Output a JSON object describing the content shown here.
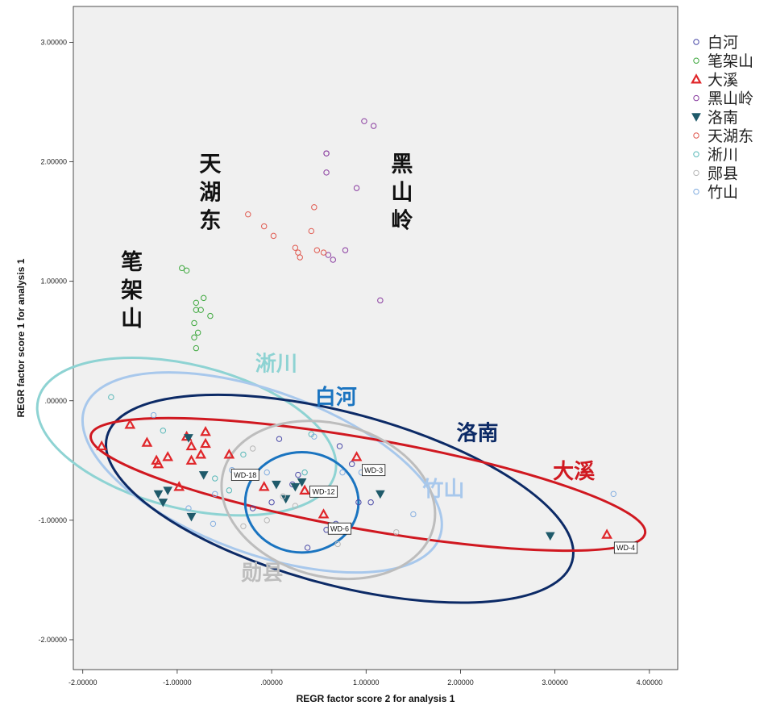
{
  "chart_data": {
    "type": "scatter",
    "xlabel": "REGR factor score   2 for analysis 1",
    "ylabel": "REGR factor score   1 for analysis 1",
    "xlim": [
      -2.1,
      4.3
    ],
    "ylim": [
      -2.25,
      3.3
    ],
    "x_ticks": [
      "-2.00000",
      "-1.00000",
      ".00000",
      "1.00000",
      "2.00000",
      "3.00000",
      "4.00000"
    ],
    "x_tick_values": [
      -2,
      -1,
      0,
      1,
      2,
      3,
      4
    ],
    "y_ticks": [
      "3.00000",
      "2.00000",
      "1.00000",
      ".00000",
      "-1.00000",
      "-2.00000"
    ],
    "y_tick_values": [
      3,
      2,
      1,
      0,
      -1,
      -2
    ],
    "legend_position": "right",
    "series": [
      {
        "name": "白河",
        "color": "#4a4aa8",
        "marker": "circle",
        "points": [
          [
            0.08,
            -0.32
          ],
          [
            0.72,
            -0.38
          ],
          [
            0.85,
            -0.53
          ],
          [
            0.92,
            -0.85
          ],
          [
            1.05,
            -0.85
          ],
          [
            0.0,
            -0.85
          ],
          [
            0.28,
            -0.62
          ],
          [
            0.38,
            -1.23
          ],
          [
            0.58,
            -1.08
          ],
          [
            0.68,
            -1.03
          ],
          [
            -0.2,
            -0.9
          ],
          [
            0.22,
            -0.7
          ]
        ]
      },
      {
        "name": "笔架山",
        "color": "#3ea83e",
        "marker": "circle",
        "points": [
          [
            -0.95,
            1.11
          ],
          [
            -0.9,
            1.09
          ],
          [
            -0.72,
            0.86
          ],
          [
            -0.8,
            0.82
          ],
          [
            -0.8,
            0.76
          ],
          [
            -0.75,
            0.76
          ],
          [
            -0.65,
            0.71
          ],
          [
            -0.82,
            0.65
          ],
          [
            -0.78,
            0.57
          ],
          [
            -0.82,
            0.53
          ],
          [
            -0.8,
            0.44
          ]
        ]
      },
      {
        "name": "大溪",
        "color": "#e0262a",
        "marker": "triangle",
        "points": [
          [
            -1.8,
            -0.38
          ],
          [
            -1.5,
            -0.2
          ],
          [
            -1.32,
            -0.35
          ],
          [
            -1.22,
            -0.5
          ],
          [
            -1.2,
            -0.53
          ],
          [
            -1.1,
            -0.47
          ],
          [
            -0.9,
            -0.3
          ],
          [
            -0.85,
            -0.38
          ],
          [
            -0.7,
            -0.26
          ],
          [
            -0.7,
            -0.36
          ],
          [
            -0.75,
            -0.45
          ],
          [
            -0.85,
            -0.5
          ],
          [
            -0.45,
            -0.45
          ],
          [
            -0.98,
            -0.72
          ],
          [
            -0.08,
            -0.72
          ],
          [
            0.35,
            -0.75
          ],
          [
            0.9,
            -0.47
          ],
          [
            0.55,
            -0.95
          ],
          [
            3.55,
            -1.12
          ]
        ]
      },
      {
        "name": "黑山岭",
        "color": "#8a3da0",
        "marker": "circle",
        "points": [
          [
            0.98,
            2.34
          ],
          [
            1.08,
            2.3
          ],
          [
            0.58,
            2.07
          ],
          [
            0.58,
            2.07
          ],
          [
            0.58,
            1.91
          ],
          [
            0.9,
            1.78
          ],
          [
            0.78,
            1.26
          ],
          [
            0.6,
            1.22
          ],
          [
            0.65,
            1.18
          ],
          [
            1.15,
            0.84
          ]
        ]
      },
      {
        "name": "洛南",
        "color": "#1f5a6a",
        "marker": "triangle-down",
        "points": [
          [
            -0.88,
            -0.31
          ],
          [
            -1.2,
            -0.78
          ],
          [
            -1.1,
            -0.75
          ],
          [
            -1.15,
            -0.85
          ],
          [
            -0.72,
            -0.62
          ],
          [
            -0.85,
            -0.97
          ],
          [
            0.05,
            -0.7
          ],
          [
            0.15,
            -0.82
          ],
          [
            0.25,
            -0.72
          ],
          [
            0.32,
            -0.68
          ],
          [
            0.65,
            -1.05
          ],
          [
            1.15,
            -0.78
          ],
          [
            2.95,
            -1.13
          ]
        ]
      },
      {
        "name": "天湖东",
        "color": "#e05a50",
        "marker": "circle",
        "points": [
          [
            -0.25,
            1.56
          ],
          [
            -0.08,
            1.46
          ],
          [
            0.02,
            1.38
          ],
          [
            0.42,
            1.42
          ],
          [
            0.45,
            1.62
          ],
          [
            0.25,
            1.28
          ],
          [
            0.28,
            1.24
          ],
          [
            0.3,
            1.2
          ],
          [
            0.48,
            1.26
          ],
          [
            0.55,
            1.24
          ]
        ]
      },
      {
        "name": "淅川",
        "color": "#58b8b8",
        "marker": "circle",
        "points": [
          [
            -1.7,
            0.03
          ],
          [
            -1.15,
            -0.25
          ],
          [
            -0.45,
            -0.75
          ],
          [
            -0.3,
            -0.45
          ],
          [
            0.35,
            -0.6
          ],
          [
            0.42,
            -0.28
          ],
          [
            -0.6,
            -0.65
          ]
        ]
      },
      {
        "name": "郧县",
        "color": "#b8b8b8",
        "marker": "circle",
        "points": [
          [
            -0.3,
            -1.05
          ],
          [
            -0.05,
            -1.0
          ],
          [
            0.25,
            -0.88
          ],
          [
            0.7,
            -1.2
          ],
          [
            1.32,
            -1.1
          ],
          [
            -0.2,
            -0.4
          ],
          [
            0.12,
            -0.8
          ]
        ]
      },
      {
        "name": "竹山",
        "color": "#84aee0",
        "marker": "circle",
        "points": [
          [
            -1.25,
            -0.12
          ],
          [
            -0.88,
            -0.9
          ],
          [
            -0.62,
            -1.03
          ],
          [
            -0.6,
            -0.78
          ],
          [
            -0.42,
            -0.58
          ],
          [
            0.45,
            -0.3
          ],
          [
            0.95,
            -0.6
          ],
          [
            1.5,
            -0.95
          ],
          [
            3.62,
            -0.78
          ],
          [
            -0.05,
            -0.6
          ],
          [
            0.75,
            -0.6
          ]
        ]
      }
    ],
    "ellipses": [
      {
        "name": "淅川",
        "color": "#8ed3d3",
        "cx": -0.9,
        "cy": -0.3,
        "rx": 1.62,
        "ry": 0.6,
        "angle_deg": -14
      },
      {
        "name": "竹山",
        "color": "#a8c8ec",
        "cx": -0.1,
        "cy": -0.6,
        "rx": 2.0,
        "ry": 0.68,
        "angle_deg": -20
      },
      {
        "name": "洛南",
        "color": "#0c2a66",
        "cx": 0.72,
        "cy": -0.82,
        "rx": 2.55,
        "ry": 0.72,
        "angle_deg": -15
      },
      {
        "name": "大溪",
        "color": "#d01820",
        "cx": 1.02,
        "cy": -0.7,
        "rx": 2.98,
        "ry": 0.38,
        "angle_deg": -10
      },
      {
        "name": "郧县",
        "color": "#bdbdbd",
        "cx": 0.6,
        "cy": -0.83,
        "rx": 1.15,
        "ry": 0.64,
        "angle_deg": -15
      },
      {
        "name": "白河",
        "color": "#1a74c0",
        "cx": 0.32,
        "cy": -0.85,
        "rx": 0.6,
        "ry": 0.42,
        "angle_deg": 0
      }
    ],
    "group_labels": [
      {
        "text": "天\n湖\n东",
        "x": -0.65,
        "y": 1.92,
        "color": "#111111",
        "size": 27
      },
      {
        "text": "黑\n山\n岭",
        "x": 1.38,
        "y": 1.92,
        "color": "#111111",
        "size": 27
      },
      {
        "text": "笔\n架\n山",
        "x": -1.48,
        "y": 1.1,
        "color": "#111111",
        "size": 27
      },
      {
        "text": "淅川",
        "x": 0.05,
        "y": 0.25,
        "color": "#8ed3d3",
        "size": 26
      },
      {
        "text": "白河",
        "x": 0.68,
        "y": -0.03,
        "color": "#1a74c0",
        "size": 26
      },
      {
        "text": "洛南",
        "x": 2.18,
        "y": -0.33,
        "color": "#0c2a66",
        "size": 26
      },
      {
        "text": "大溪",
        "x": 3.2,
        "y": -0.65,
        "color": "#d01820",
        "size": 26
      },
      {
        "text": "竹山",
        "x": 1.82,
        "y": -0.8,
        "color": "#a8c8ec",
        "size": 26
      },
      {
        "text": "勋县",
        "x": -0.1,
        "y": -1.5,
        "color": "#bdbdbd",
        "size": 26
      }
    ],
    "box_labels": [
      {
        "text": "WD-18",
        "x": -0.28,
        "y": -0.62
      },
      {
        "text": "WD-3",
        "x": 1.08,
        "y": -0.58
      },
      {
        "text": "WD-12",
        "x": 0.55,
        "y": -0.76
      },
      {
        "text": "WD-6",
        "x": 0.72,
        "y": -1.07
      },
      {
        "text": "WD-4",
        "x": 3.75,
        "y": -1.23
      }
    ]
  }
}
